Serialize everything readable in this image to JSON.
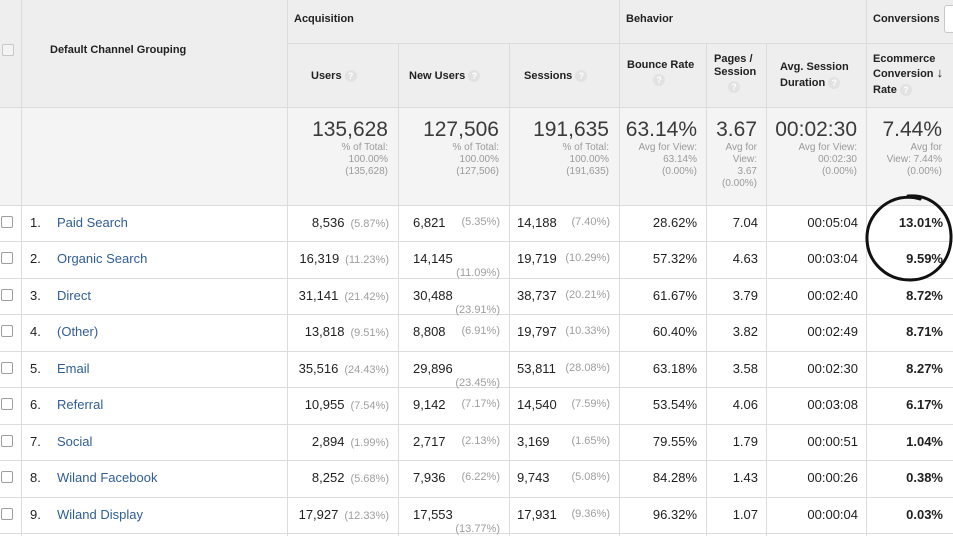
{
  "headers": {
    "dimension": "Default Channel Grouping",
    "groups": {
      "acquisition": "Acquisition",
      "behavior": "Behavior",
      "conversions": "Conversions"
    },
    "columns": {
      "users": "Users",
      "new_users": "New Users",
      "sessions": "Sessions",
      "bounce_rate": "Bounce Rate",
      "pages_session_l1": "Pages /",
      "pages_session_l2": "Session",
      "avg_duration_l1": "Avg. Session",
      "avg_duration_l2": "Duration",
      "ecom_l1": "Ecommerce",
      "ecom_l2": "Conversion",
      "ecom_l3": "Rate"
    },
    "help_glyph": "?",
    "sort_glyph": "↓"
  },
  "totals": {
    "users": {
      "value": "135,628",
      "l1": "% of Total:",
      "l2": "100.00%",
      "l3": "(135,628)"
    },
    "new_users": {
      "value": "127,506",
      "l1": "% of Total:",
      "l2": "100.00%",
      "l3": "(127,506)"
    },
    "sessions": {
      "value": "191,635",
      "l1": "% of Total:",
      "l2": "100.00%",
      "l3": "(191,635)"
    },
    "bounce_rate": {
      "value": "63.14%",
      "l1": "Avg for View:",
      "l2": "63.14%",
      "l3": "(0.00%)"
    },
    "pages_session": {
      "value": "3.67",
      "l1": "Avg for",
      "l2": "View:",
      "l3": "3.67",
      "l4": "(0.00%)"
    },
    "avg_duration": {
      "value": "00:02:30",
      "l1": "Avg for View:",
      "l2": "00:02:30",
      "l3": "(0.00%)"
    },
    "ecom_rate": {
      "value": "7.44%",
      "l1": "Avg for",
      "l2": "View: 7.44%",
      "l3": "(0.00%)"
    }
  },
  "rows": [
    {
      "idx": "1.",
      "channel": "Paid Search",
      "users": "8,536",
      "users_pct": "(5.87%)",
      "new_users": "6,821",
      "new_users_pct": "(5.35%)",
      "sessions": "14,188",
      "sessions_pct": "(7.40%)",
      "bounce": "28.62%",
      "pages": "7.04",
      "duration": "00:05:04",
      "ecom": "13.01%"
    },
    {
      "idx": "2.",
      "channel": "Organic Search",
      "users": "16,319",
      "users_pct": "(11.23%)",
      "new_users": "14,145",
      "new_users_pct": "(11.09%)",
      "sessions": "19,719",
      "sessions_pct": "(10.29%)",
      "bounce": "57.32%",
      "pages": "4.63",
      "duration": "00:03:04",
      "ecom": "9.59%"
    },
    {
      "idx": "3.",
      "channel": "Direct",
      "users": "31,141",
      "users_pct": "(21.42%)",
      "new_users": "30,488",
      "new_users_pct": "(23.91%)",
      "sessions": "38,737",
      "sessions_pct": "(20.21%)",
      "bounce": "61.67%",
      "pages": "3.79",
      "duration": "00:02:40",
      "ecom": "8.72%"
    },
    {
      "idx": "4.",
      "channel": "(Other)",
      "users": "13,818",
      "users_pct": "(9.51%)",
      "new_users": "8,808",
      "new_users_pct": "(6.91%)",
      "sessions": "19,797",
      "sessions_pct": "(10.33%)",
      "bounce": "60.40%",
      "pages": "3.82",
      "duration": "00:02:49",
      "ecom": "8.71%"
    },
    {
      "idx": "5.",
      "channel": "Email",
      "users": "35,516",
      "users_pct": "(24.43%)",
      "new_users": "29,896",
      "new_users_pct": "(23.45%)",
      "sessions": "53,811",
      "sessions_pct": "(28.08%)",
      "bounce": "63.18%",
      "pages": "3.58",
      "duration": "00:02:30",
      "ecom": "8.27%"
    },
    {
      "idx": "6.",
      "channel": "Referral",
      "users": "10,955",
      "users_pct": "(7.54%)",
      "new_users": "9,142",
      "new_users_pct": "(7.17%)",
      "sessions": "14,540",
      "sessions_pct": "(7.59%)",
      "bounce": "53.54%",
      "pages": "4.06",
      "duration": "00:03:08",
      "ecom": "6.17%"
    },
    {
      "idx": "7.",
      "channel": "Social",
      "users": "2,894",
      "users_pct": "(1.99%)",
      "new_users": "2,717",
      "new_users_pct": "(2.13%)",
      "sessions": "3,169",
      "sessions_pct": "(1.65%)",
      "bounce": "79.55%",
      "pages": "1.79",
      "duration": "00:00:51",
      "ecom": "1.04%"
    },
    {
      "idx": "8.",
      "channel": "Wiland Facebook",
      "users": "8,252",
      "users_pct": "(5.68%)",
      "new_users": "7,936",
      "new_users_pct": "(6.22%)",
      "sessions": "9,743",
      "sessions_pct": "(5.08%)",
      "bounce": "84.28%",
      "pages": "1.43",
      "duration": "00:00:26",
      "ecom": "0.38%"
    },
    {
      "idx": "9.",
      "channel": "Wiland Display",
      "users": "17,927",
      "users_pct": "(12.33%)",
      "new_users": "17,553",
      "new_users_pct": "(13.77%)",
      "sessions": "17,931",
      "sessions_pct": "(9.36%)",
      "bounce": "96.32%",
      "pages": "1.07",
      "duration": "00:00:04",
      "ecom": "0.03%"
    }
  ],
  "colors": {
    "link": "#2f5d96",
    "header_bg": "#eeeeee",
    "annotation": "#000000"
  }
}
